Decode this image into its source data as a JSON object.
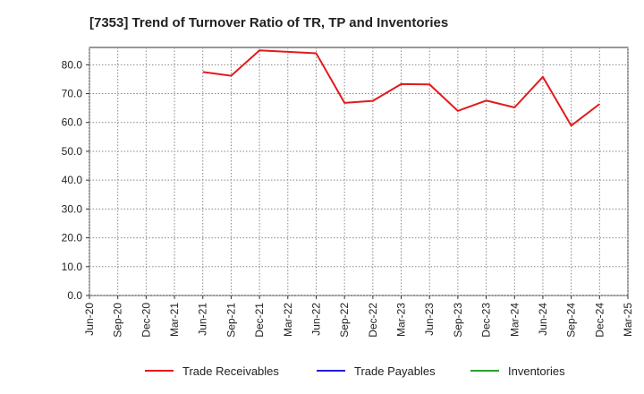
{
  "chart_data": {
    "type": "line",
    "title": "[7353]  Trend of Turnover Ratio of TR, TP and Inventories",
    "xlabel": "",
    "ylabel": "",
    "categories": [
      "Jun-20",
      "Sep-20",
      "Dec-20",
      "Mar-21",
      "Jun-21",
      "Sep-21",
      "Dec-21",
      "Mar-22",
      "Jun-22",
      "Sep-22",
      "Dec-22",
      "Mar-23",
      "Jun-23",
      "Sep-23",
      "Dec-23",
      "Mar-24",
      "Jun-24",
      "Sep-24",
      "Dec-24",
      "Mar-25"
    ],
    "ylim": [
      0,
      86
    ],
    "yticks": [
      "0.0",
      "10.0",
      "20.0",
      "30.0",
      "40.0",
      "50.0",
      "60.0",
      "70.0",
      "80.0"
    ],
    "grid": true,
    "legend_position": "bottom",
    "series": [
      {
        "name": "Trade Receivables",
        "color": "#e31a1c",
        "values": [
          null,
          null,
          null,
          null,
          77.5,
          76.2,
          85.0,
          84.5,
          84.0,
          66.8,
          67.5,
          73.3,
          73.2,
          64.0,
          67.6,
          65.2,
          75.8,
          58.9,
          66.4,
          null
        ]
      },
      {
        "name": "Trade Payables",
        "color": "#1f1fd6",
        "values": [
          null,
          null,
          null,
          null,
          null,
          null,
          null,
          null,
          null,
          null,
          null,
          null,
          null,
          null,
          null,
          null,
          null,
          null,
          null,
          null
        ]
      },
      {
        "name": "Inventories",
        "color": "#2ca02c",
        "values": [
          null,
          null,
          null,
          null,
          null,
          null,
          null,
          null,
          null,
          null,
          null,
          null,
          null,
          null,
          null,
          null,
          null,
          null,
          null,
          null
        ]
      }
    ]
  }
}
